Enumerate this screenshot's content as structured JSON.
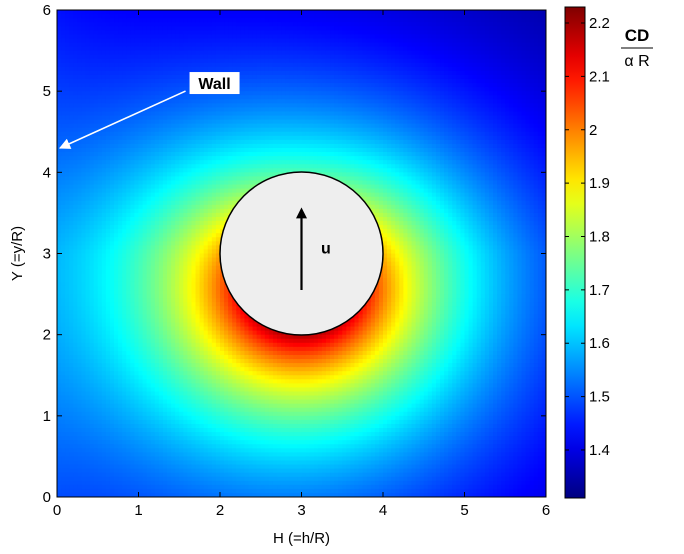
{
  "chart_data": {
    "type": "heatmap",
    "xlabel": "H (=h/R)",
    "ylabel": "Y (=y/R)",
    "xlim": [
      0,
      6
    ],
    "ylim": [
      0,
      6
    ],
    "xticks": [
      "0",
      "1",
      "2",
      "3",
      "4",
      "5",
      "6"
    ],
    "yticks": [
      "0",
      "1",
      "2",
      "3",
      "4",
      "5",
      "6"
    ],
    "colorbar": {
      "label_numerator": "CD",
      "label_denominator": "α R",
      "range": [
        1.31,
        2.23
      ],
      "ticks": [
        "1.4",
        "1.5",
        "1.6",
        "1.7",
        "1.8",
        "1.9",
        "2",
        "2.1",
        "2.2"
      ],
      "tick_values": [
        1.4,
        1.5,
        1.6,
        1.7,
        1.8,
        1.9,
        2.0,
        2.1,
        2.2
      ],
      "colormap": "jet"
    },
    "obstacle": {
      "center": [
        3,
        3
      ],
      "radius": 1,
      "fill": "#eeeeee"
    },
    "annotations": [
      {
        "text": "Wall",
        "points_to": [
          0,
          4.3
        ],
        "label_at": [
          1.7,
          5.1
        ]
      },
      {
        "text": "u",
        "arrow_from": [
          3,
          2.55
        ],
        "arrow_to": [
          3,
          3.5
        ],
        "label_at": [
          3.3,
          3.0
        ]
      }
    ],
    "field_samples": {
      "description_points": [
        {
          "x": 3,
          "y": 2,
          "value": 2.2
        },
        {
          "x": 3,
          "y": 4,
          "value": 1.85
        },
        {
          "x": 0.2,
          "y": 3,
          "value": 1.7
        },
        {
          "x": 5.5,
          "y": 3,
          "value": 1.5
        },
        {
          "x": 3,
          "y": 0.2,
          "value": 1.5
        },
        {
          "x": 6,
          "y": 6,
          "value": 1.33
        },
        {
          "x": 0,
          "y": 6,
          "value": 1.4
        },
        {
          "x": 6,
          "y": 0,
          "value": 1.38
        },
        {
          "x": 0,
          "y": 0,
          "value": 1.5
        }
      ]
    }
  }
}
